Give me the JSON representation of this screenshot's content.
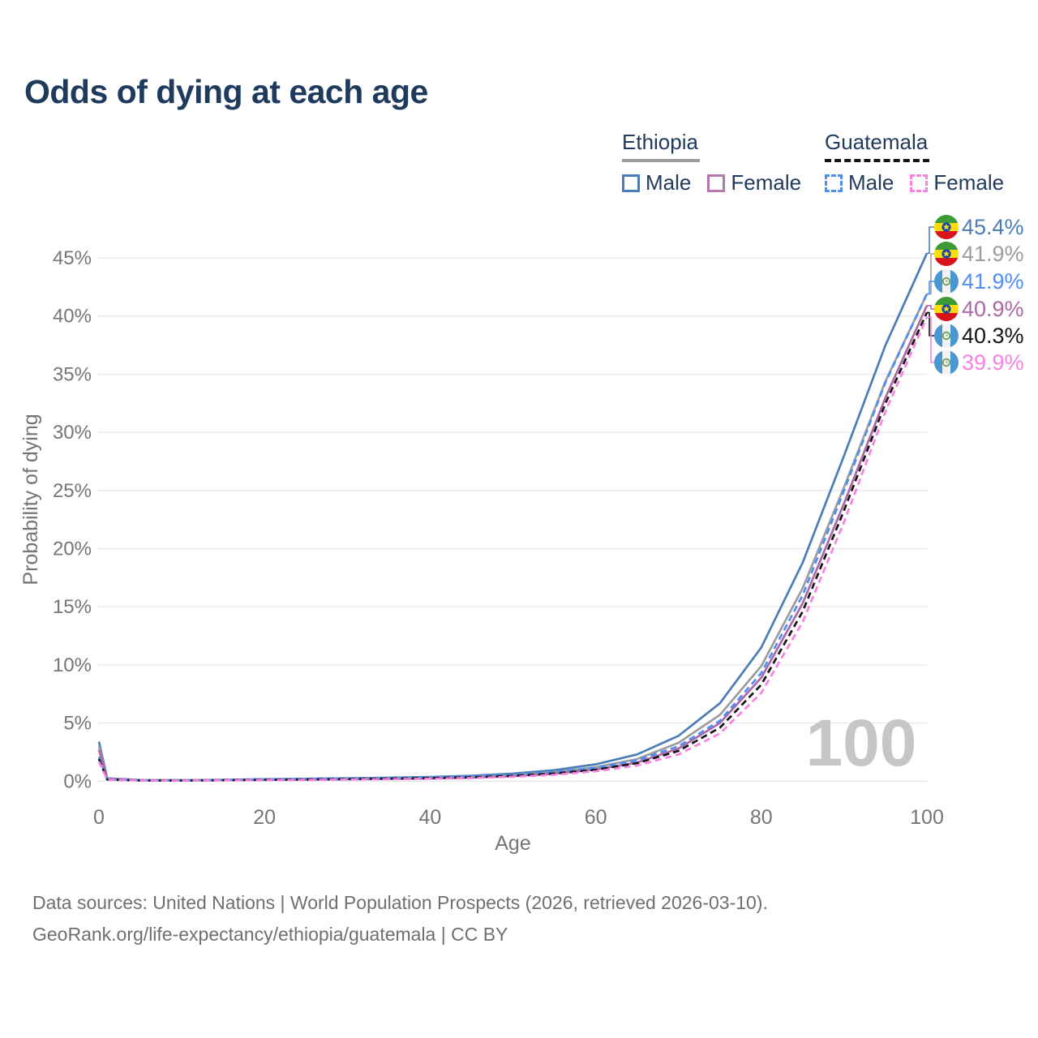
{
  "title": "Odds of dying at each age",
  "watermark": "100",
  "legend": {
    "groups": [
      {
        "country": "Ethiopia",
        "line_style": "solid",
        "underline_color": "#9c9c9c",
        "items": [
          {
            "label": "Male",
            "color": "#4a7db8"
          },
          {
            "label": "Female",
            "color": "#b776ae"
          }
        ]
      },
      {
        "country": "Guatemala",
        "line_style": "dashed",
        "underline_color": "#141414",
        "items": [
          {
            "label": "Male",
            "color": "#4f8df7"
          },
          {
            "label": "Female",
            "color": "#fa7fe2"
          }
        ]
      }
    ]
  },
  "chart_data": {
    "type": "line",
    "title": "Odds of dying at each age",
    "xlabel": "Age",
    "ylabel": "Probability of dying",
    "x_ticks": [
      0,
      20,
      40,
      60,
      80,
      100
    ],
    "y_ticks_percent": [
      0,
      5,
      10,
      15,
      20,
      25,
      30,
      35,
      40,
      45
    ],
    "xlim": [
      0,
      100
    ],
    "ylim_percent": [
      0,
      47
    ],
    "grid": "horizontal-only",
    "legend_position": "top-right",
    "ages": [
      0,
      1,
      5,
      10,
      15,
      20,
      25,
      30,
      35,
      40,
      45,
      50,
      55,
      60,
      65,
      70,
      75,
      80,
      85,
      90,
      95,
      100
    ],
    "series": [
      {
        "name": "Ethiopia Male",
        "country": "Ethiopia",
        "sex": "Male",
        "color": "#4a7db8",
        "dash": "solid",
        "end_label": "45.4%",
        "end_value_percent": 45.4,
        "values": [
          3.4,
          0.25,
          0.1,
          0.09,
          0.12,
          0.17,
          0.21,
          0.25,
          0.3,
          0.36,
          0.47,
          0.65,
          0.95,
          1.45,
          2.3,
          3.9,
          6.7,
          11.5,
          18.8,
          28.0,
          37.5,
          45.4
        ]
      },
      {
        "name": "Ethiopia Both sexes",
        "country": "Ethiopia",
        "sex": "Both",
        "color": "#9c9c9c",
        "dash": "solid",
        "end_label": "41.9%",
        "end_value_percent": 41.9,
        "values": [
          3.0,
          0.22,
          0.09,
          0.08,
          0.1,
          0.14,
          0.17,
          0.2,
          0.24,
          0.29,
          0.38,
          0.53,
          0.78,
          1.2,
          1.9,
          3.3,
          5.7,
          9.9,
          16.6,
          25.3,
          34.4,
          41.9
        ]
      },
      {
        "name": "Guatemala Male",
        "country": "Guatemala",
        "sex": "Male",
        "color": "#4f8df7",
        "dash": "dashed",
        "end_label": "41.9%",
        "end_value_percent": 41.9,
        "values": [
          2.1,
          0.15,
          0.07,
          0.06,
          0.1,
          0.16,
          0.2,
          0.24,
          0.28,
          0.33,
          0.41,
          0.55,
          0.78,
          1.15,
          1.8,
          3.0,
          5.2,
          9.3,
          16.0,
          25.0,
          34.3,
          41.9
        ]
      },
      {
        "name": "Ethiopia Female",
        "country": "Ethiopia",
        "sex": "Female",
        "color": "#ad68a8",
        "dash": "solid",
        "end_label": "40.9%",
        "end_value_percent": 40.9,
        "values": [
          2.7,
          0.2,
          0.08,
          0.07,
          0.09,
          0.11,
          0.13,
          0.16,
          0.19,
          0.23,
          0.31,
          0.43,
          0.64,
          1.0,
          1.6,
          2.8,
          5.0,
          8.9,
          15.3,
          23.9,
          33.0,
          40.9
        ]
      },
      {
        "name": "Guatemala Both sexes",
        "country": "Guatemala",
        "sex": "Both",
        "color": "#141414",
        "dash": "dashed",
        "end_label": "40.3%",
        "end_value_percent": 40.3,
        "values": [
          1.9,
          0.14,
          0.06,
          0.055,
          0.08,
          0.12,
          0.15,
          0.18,
          0.22,
          0.27,
          0.34,
          0.46,
          0.66,
          0.98,
          1.55,
          2.6,
          4.6,
          8.3,
          14.6,
          23.3,
          32.5,
          40.3
        ]
      },
      {
        "name": "Guatemala Female",
        "country": "Guatemala",
        "sex": "Female",
        "color": "#fa7fe2",
        "dash": "dashed",
        "end_label": "39.9%",
        "end_value_percent": 39.9,
        "values": [
          1.7,
          0.13,
          0.055,
          0.05,
          0.07,
          0.09,
          0.11,
          0.14,
          0.17,
          0.21,
          0.27,
          0.38,
          0.55,
          0.85,
          1.35,
          2.3,
          4.1,
          7.6,
          13.7,
          22.3,
          31.8,
          39.9
        ]
      }
    ]
  },
  "footer": {
    "line1": "Data sources: United Nations | World Population Prospects (2026, retrieved 2026-03-10).",
    "line2": "GeoRank.org/life-expectancy/ethiopia/guatemala | CC BY"
  }
}
